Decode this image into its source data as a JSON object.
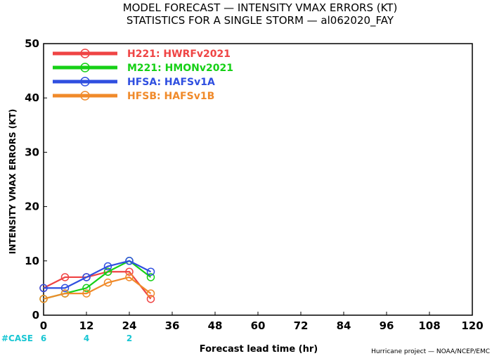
{
  "chart_data": {
    "type": "line",
    "title_line1": "MODEL FORECAST — INTENSITY VMAX ERRORS (KT)",
    "title_line2": "STATISTICS FOR A SINGLE STORM — al062020_FAY",
    "ylabel": "INTENSITY VMAX ERRORS (KT)",
    "xlabel": "Forecast lead time (hr)",
    "credit": "Hurricane project — NOAA/NCEP/EMC",
    "xlim": [
      0,
      120
    ],
    "ylim": [
      0,
      50
    ],
    "xticks": [
      0,
      12,
      24,
      36,
      48,
      60,
      72,
      84,
      96,
      108,
      120
    ],
    "yticks": [
      0,
      10,
      20,
      30,
      40,
      50
    ],
    "grid": false,
    "legend_position": "top-left",
    "series": [
      {
        "name": "H221: HWRFv2021",
        "color": "#ef4444",
        "x": [
          0,
          6,
          12,
          18,
          24,
          30
        ],
        "values": [
          5,
          7,
          7,
          8,
          8,
          3
        ]
      },
      {
        "name": "M221: HMONv2021",
        "color": "#16d016",
        "x": [
          0,
          6,
          12,
          18,
          24,
          30
        ],
        "values": [
          3,
          4,
          5,
          8,
          10,
          7
        ]
      },
      {
        "name": "HFSA: HAFSv1A",
        "color": "#2f4fe0",
        "x": [
          0,
          6,
          12,
          18,
          24,
          30
        ],
        "values": [
          5,
          5,
          7,
          9,
          10,
          8
        ]
      },
      {
        "name": "HFSB: HAFSv1B",
        "color": "#f08a2a",
        "x": [
          0,
          6,
          12,
          18,
          24,
          30
        ],
        "values": [
          3,
          4,
          4,
          6,
          7,
          4
        ]
      }
    ],
    "case_label": "#CASE",
    "case_color": "#19c6d3",
    "cases": [
      {
        "x": 0,
        "count": "6"
      },
      {
        "x": 12,
        "count": "4"
      },
      {
        "x": 24,
        "count": "2"
      }
    ]
  }
}
